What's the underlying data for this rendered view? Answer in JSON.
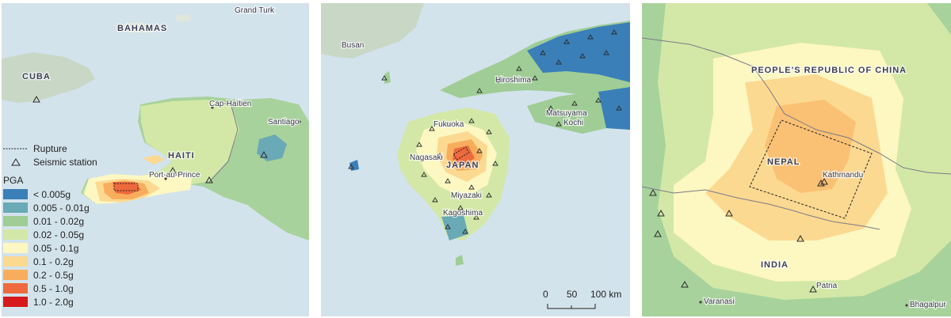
{
  "panels": {
    "haiti": {
      "labels": {
        "grand_turk": "Grand Turk",
        "bahamas": "BAHAMAS",
        "cuba": "CUBA",
        "cap_haitien": "Cap-Haïtien",
        "santiago": "Santiago",
        "haiti": "HAITI",
        "port_au_prince": "Port-au-Prince"
      }
    },
    "japan": {
      "labels": {
        "busan": "Busan",
        "hiroshima": "Hiroshima",
        "fukuoka": "Fukuoka",
        "matsuyama": "Matsuyama",
        "kochi": "Kochi",
        "nagasaki": "Nagasaki",
        "japan": "JAPAN",
        "miyazaki": "Miyazaki",
        "kagoshima": "Kagoshima"
      },
      "scale_bar": {
        "ticks": [
          "0",
          "50",
          "100 km"
        ]
      }
    },
    "nepal": {
      "labels": {
        "china": "PEOPLE'S REPUBLIC OF CHINA",
        "nepal": "NEPAL",
        "kathmandu": "Kathmandu",
        "india": "INDIA",
        "patna": "Patna",
        "varanasi": "Varanasi",
        "bhagalpur": "Bhagalpur"
      }
    }
  },
  "legend": {
    "rupture_label": "Rupture",
    "station_label": "Seismic station",
    "pga_title": "PGA",
    "classes": [
      {
        "label": "< 0.005g",
        "color": "#3a7fb8"
      },
      {
        "label": "0.005 - 0.01g",
        "color": "#6aa9b6"
      },
      {
        "label": "0.01 - 0.02g",
        "color": "#9fcd95"
      },
      {
        "label": "0.02 - 0.05g",
        "color": "#d3e8a6"
      },
      {
        "label": "0.05 - 0.1g",
        "color": "#fdf7c2"
      },
      {
        "label": "0.1 - 0.2g",
        "color": "#fcd991"
      },
      {
        "label": "0.2 - 0.5g",
        "color": "#f8ad5d"
      },
      {
        "label": "0.5 - 1.0g",
        "color": "#ee6a3c"
      },
      {
        "label": "1.0 - 2.0g",
        "color": "#d7191c"
      }
    ]
  },
  "colors": {
    "sea": "#d3e3ec",
    "land": "#e1e8d6",
    "boundary": "#7a7a88",
    "station_stroke": "#2a2a2a"
  }
}
